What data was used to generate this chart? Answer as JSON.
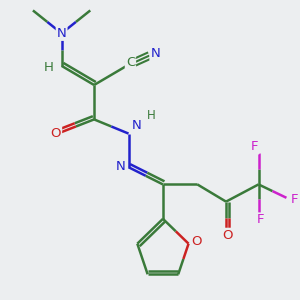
{
  "background_color": "#eceef0",
  "bond_color_green": "#3a7a3a",
  "bond_color_blue": "#2222cc",
  "bond_color_red": "#cc2222",
  "bond_color_magenta": "#cc22cc",
  "atom_N_color": "#2222cc",
  "atom_O_color": "#cc2222",
  "atom_F_color": "#cc22cc",
  "atom_C_color": "#3a7a3a",
  "atom_H_color": "#3a7a3a",
  "figsize": [
    3.0,
    3.0
  ],
  "dpi": 100,
  "xlim": [
    0.0,
    7.2
  ],
  "ylim": [
    -2.5,
    5.2
  ]
}
